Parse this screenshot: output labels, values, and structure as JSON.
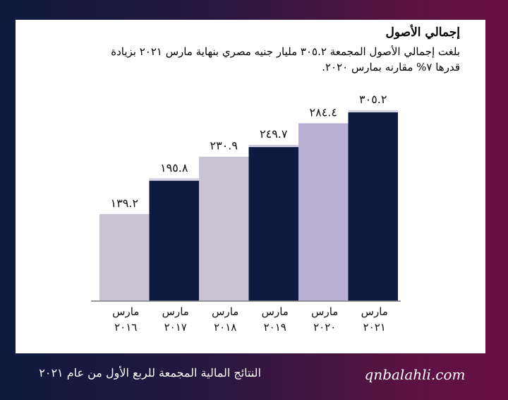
{
  "title": "إجمالي الأصول",
  "subtitle": "بلغت إجمالي الأصول المجمعة ٣٠٥.٢ مليار جنيه مصري بنهاية مارس ٢٠٢١ بزيادة قدرها ٧% مقارنه بمارس ٢٠٢٠.",
  "footer": {
    "website": "qnbalahli.com",
    "caption": "النتائج المالية المجمعة للربع الأول من عام ٢٠٢١"
  },
  "colors": {
    "light": "#c9c4d4",
    "dark": "#0f1a40",
    "lavender": "#b9b0d4"
  },
  "chart_data": {
    "type": "bar",
    "categories": [
      [
        "مارس",
        "٢٠١٦"
      ],
      [
        "مارس",
        "٢٠١٧"
      ],
      [
        "مارس",
        "٢٠١٨"
      ],
      [
        "مارس",
        "٢٠١٩"
      ],
      [
        "مارس",
        "٢٠٢٠"
      ],
      [
        "مارس",
        "٢٠٢١"
      ]
    ],
    "values": [
      139.2,
      195.8,
      230.9,
      249.7,
      284.4,
      305.2
    ],
    "data_labels": [
      "١٣٩.٢",
      "١٩٥.٨",
      "٢٣٠.٩",
      "٢٤٩.٧",
      "٢٨٤.٤",
      "٣٠٥.٢"
    ],
    "bar_colors": [
      "light",
      "dark",
      "light",
      "dark",
      "lavender",
      "dark"
    ],
    "ylim": [
      0,
      305.2
    ],
    "grid": false,
    "legend": "none"
  }
}
